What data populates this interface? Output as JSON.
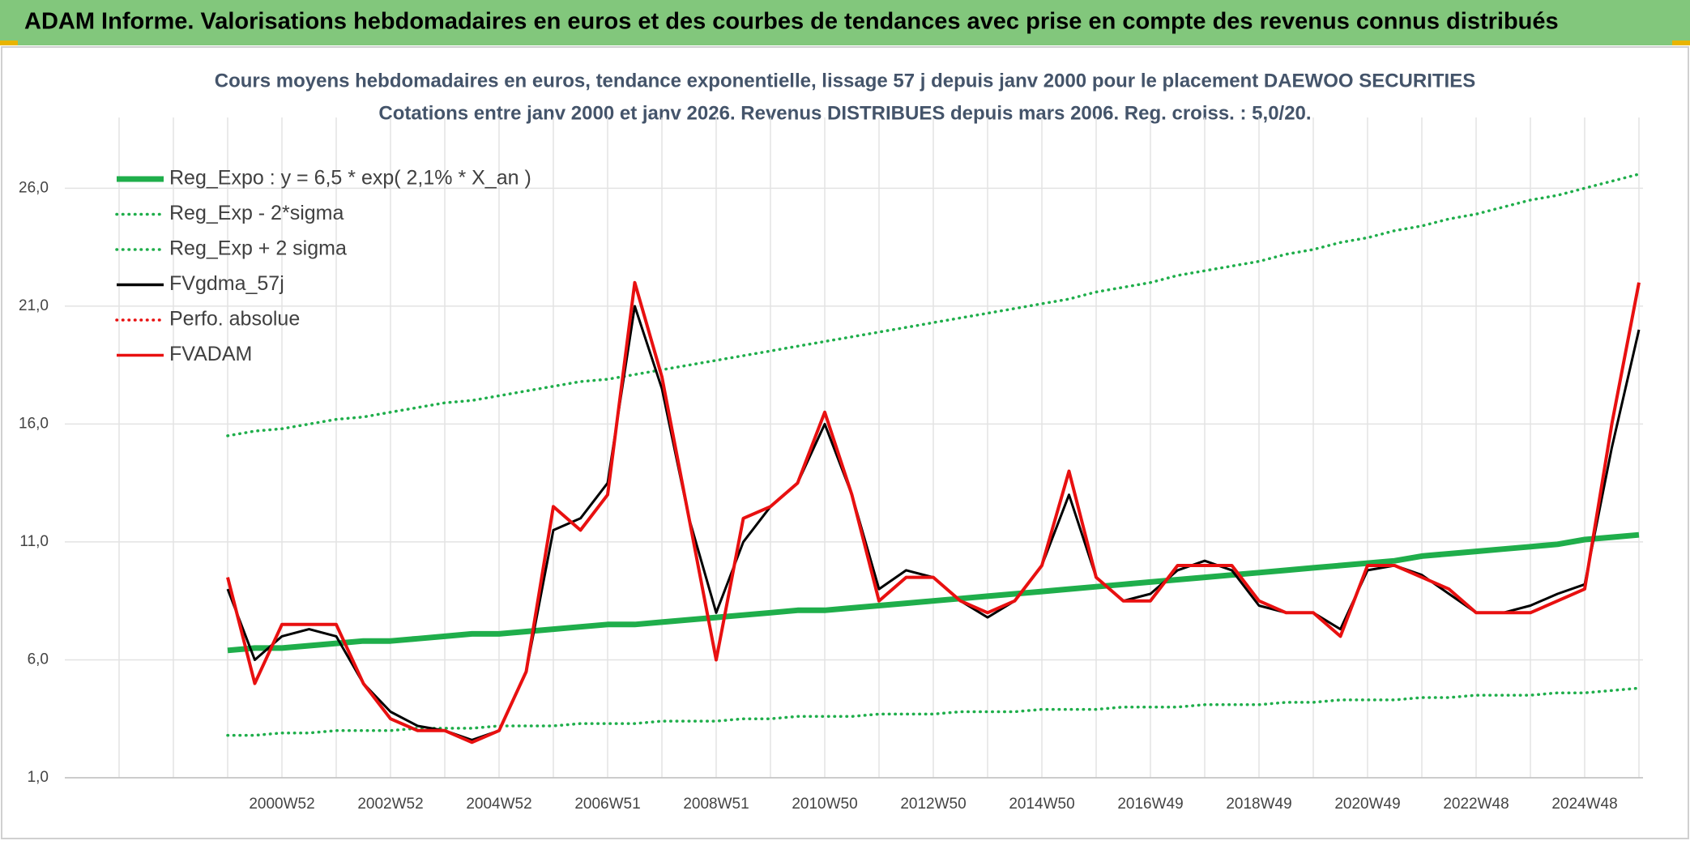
{
  "header": {
    "title": "ADAM Informe. Valorisations hebdomadaires en euros et des courbes de tendances avec prise en compte des revenus connus distribués"
  },
  "chart_data": {
    "type": "line",
    "title": "Cours moyens hebdomadaires en euros, tendance exponentielle, lissage 57 j depuis janv 2000 pour le placement DAEWOO SECURITIES",
    "subtitle": "Cotations entre janv 2000 et janv 2026. Revenus DISTRIBUES depuis mars 2006. Reg. croiss. : 5,0/20.",
    "categories": [
      null,
      null,
      null,
      null,
      null,
      null,
      null,
      null,
      "2000W52",
      null,
      null,
      null,
      "2002W52",
      null,
      null,
      null,
      "2004W52",
      null,
      null,
      null,
      "2006W51",
      null,
      null,
      null,
      "2008W51",
      null,
      null,
      null,
      "2010W50",
      null,
      null,
      null,
      "2012W50",
      null,
      null,
      null,
      "2014W50",
      null,
      null,
      null,
      "2016W49",
      null,
      null,
      null,
      "2018W49",
      null,
      null,
      null,
      "2020W49",
      null,
      null,
      null,
      "2022W48",
      null,
      null,
      null,
      "2024W48",
      null,
      null
    ],
    "ylim": [
      1,
      29
    ],
    "yticks": [
      {
        "value": 1,
        "label": "1,0"
      },
      {
        "value": 6,
        "label": "6,0"
      },
      {
        "value": 11,
        "label": "11,0"
      },
      {
        "value": 16,
        "label": "16,0"
      },
      {
        "value": 21,
        "label": "21,0"
      },
      {
        "value": 26,
        "label": "26,0"
      }
    ],
    "grid": true,
    "legend": "upper left",
    "series": [
      {
        "name": "Reg_Expo : y = 6,5 * exp( 2,1% *  X_an )",
        "color": "#1fae4b",
        "style": "solid",
        "values": [
          null,
          null,
          null,
          null,
          null,
          null,
          6.4,
          6.5,
          6.5,
          6.6,
          6.7,
          6.8,
          6.8,
          6.9,
          7.0,
          7.1,
          7.1,
          7.2,
          7.3,
          7.4,
          7.5,
          7.5,
          7.6,
          7.7,
          7.8,
          7.9,
          8.0,
          8.1,
          8.1,
          8.2,
          8.3,
          8.4,
          8.5,
          8.6,
          8.7,
          8.8,
          8.9,
          9.0,
          9.1,
          9.2,
          9.3,
          9.4,
          9.5,
          9.6,
          9.7,
          9.8,
          9.9,
          10.0,
          10.1,
          10.2,
          10.4,
          10.5,
          10.6,
          10.7,
          10.8,
          10.9,
          11.1,
          11.2,
          11.3
        ]
      },
      {
        "name": "Reg_Exp - 2*sigma",
        "color": "#1fae4b",
        "style": "dotted",
        "values": [
          null,
          null,
          null,
          null,
          null,
          null,
          2.8,
          2.8,
          2.9,
          2.9,
          3.0,
          3.0,
          3.0,
          3.1,
          3.1,
          3.1,
          3.2,
          3.2,
          3.2,
          3.3,
          3.3,
          3.3,
          3.4,
          3.4,
          3.4,
          3.5,
          3.5,
          3.6,
          3.6,
          3.6,
          3.7,
          3.7,
          3.7,
          3.8,
          3.8,
          3.8,
          3.9,
          3.9,
          3.9,
          4.0,
          4.0,
          4.0,
          4.1,
          4.1,
          4.1,
          4.2,
          4.2,
          4.3,
          4.3,
          4.3,
          4.4,
          4.4,
          4.5,
          4.5,
          4.5,
          4.6,
          4.6,
          4.7,
          4.8
        ]
      },
      {
        "name": "Reg_Exp + 2 sigma",
        "color": "#1fae4b",
        "style": "dotted",
        "values": [
          null,
          null,
          null,
          null,
          null,
          null,
          15.5,
          15.7,
          15.8,
          16.0,
          16.2,
          16.3,
          16.5,
          16.7,
          16.9,
          17.0,
          17.2,
          17.4,
          17.6,
          17.8,
          17.9,
          18.1,
          18.3,
          18.5,
          18.7,
          18.9,
          19.1,
          19.3,
          19.5,
          19.7,
          19.9,
          20.1,
          20.3,
          20.5,
          20.7,
          20.9,
          21.1,
          21.3,
          21.6,
          21.8,
          22.0,
          22.3,
          22.5,
          22.7,
          22.9,
          23.2,
          23.4,
          23.7,
          23.9,
          24.2,
          24.4,
          24.7,
          24.9,
          25.2,
          25.5,
          25.7,
          26.0,
          26.3,
          26.6
        ]
      },
      {
        "name": "FVgdma_57j",
        "color": "#000000",
        "style": "solid",
        "values": [
          null,
          null,
          null,
          null,
          null,
          null,
          9,
          6,
          7,
          7.3,
          7,
          5,
          3.8,
          3.2,
          3.0,
          2.6,
          3.0,
          5.5,
          11.5,
          12.0,
          13.5,
          21,
          17.5,
          12,
          8,
          11,
          12.5,
          13.5,
          16,
          13,
          9,
          9.8,
          9.5,
          8.5,
          7.8,
          8.5,
          10,
          13,
          9.5,
          8.5,
          8.8,
          9.8,
          10.2,
          9.8,
          8.3,
          8.0,
          8.0,
          7.3,
          9.8,
          10,
          9.6,
          8.8,
          8.0,
          8.0,
          8.3,
          8.8,
          9.2,
          15,
          20
        ]
      },
      {
        "name": "Perfo. absolue",
        "color": "#e81010",
        "style": "dotted",
        "values": [
          null,
          null,
          null,
          null,
          null,
          null,
          null,
          null,
          null,
          null,
          null,
          null,
          null,
          null,
          null,
          null,
          null,
          null,
          null,
          null,
          null,
          null,
          null,
          null,
          null,
          null,
          null,
          null,
          null,
          null,
          null,
          null,
          null,
          null,
          null,
          null,
          null,
          null,
          null,
          null,
          null,
          null,
          null,
          null,
          null,
          null,
          null,
          null,
          null,
          null,
          null,
          null,
          null,
          null,
          null,
          null,
          null,
          null,
          null
        ]
      },
      {
        "name": "FVADAM",
        "color": "#e81010",
        "style": "solid",
        "values": [
          null,
          null,
          null,
          null,
          null,
          null,
          9.5,
          5.0,
          7.5,
          7.5,
          7.5,
          5.0,
          3.5,
          3.0,
          3.0,
          2.5,
          3.0,
          5.5,
          12.5,
          11.5,
          13.0,
          22.0,
          18,
          12,
          6,
          12,
          12.5,
          13.5,
          16.5,
          13,
          8.5,
          9.5,
          9.5,
          8.5,
          8.0,
          8.5,
          10,
          14,
          9.5,
          8.5,
          8.5,
          10,
          10,
          10,
          8.5,
          8.0,
          8.0,
          7.0,
          10,
          10,
          9.5,
          9.0,
          8.0,
          8.0,
          8.0,
          8.5,
          9.0,
          16,
          22
        ]
      }
    ]
  }
}
